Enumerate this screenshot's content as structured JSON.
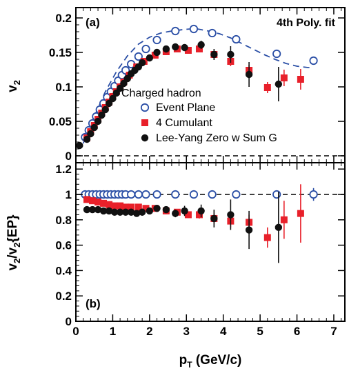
{
  "chart_data": [
    {
      "type": "scatter",
      "panel_label": "(a)",
      "ylabel": "v",
      "ylabel_sub": "2",
      "xlim": [
        0,
        7.3
      ],
      "ylim": [
        -0.01,
        0.215
      ],
      "yticks": [
        "0",
        "0.05",
        "0.1",
        "0.15",
        "0.2"
      ],
      "ytick_values": [
        0,
        0.05,
        0.1,
        0.15,
        0.2
      ],
      "legend_title": "Charged hadron",
      "fit_label": "4th Poly. fit",
      "reference_line": 0,
      "fit_curve": {
        "x": [
          0.2,
          0.5,
          0.8,
          1.1,
          1.4,
          1.7,
          2.0,
          2.3,
          2.6,
          2.9,
          3.1,
          3.3,
          3.6,
          3.9,
          4.2,
          4.5,
          4.8,
          5.1,
          5.4,
          5.7,
          6.0,
          6.3,
          6.45
        ],
        "y": [
          0.018,
          0.057,
          0.093,
          0.122,
          0.145,
          0.162,
          0.172,
          0.178,
          0.181,
          0.183,
          0.184,
          0.184,
          0.181,
          0.177,
          0.171,
          0.163,
          0.155,
          0.147,
          0.14,
          0.134,
          0.13,
          0.128,
          0.128
        ]
      },
      "series": [
        {
          "name": "Event Plane",
          "marker": "open-circle",
          "color": "#2b4fa6",
          "x": [
            0.25,
            0.35,
            0.45,
            0.55,
            0.65,
            0.75,
            0.85,
            0.95,
            1.05,
            1.15,
            1.25,
            1.35,
            1.5,
            1.7,
            1.9,
            2.2,
            2.7,
            3.2,
            3.7,
            4.35,
            5.45,
            6.45
          ],
          "y": [
            0.027,
            0.037,
            0.047,
            0.057,
            0.067,
            0.076,
            0.085,
            0.093,
            0.101,
            0.109,
            0.117,
            0.124,
            0.133,
            0.144,
            0.155,
            0.168,
            0.181,
            0.184,
            0.178,
            0.169,
            0.148,
            0.138
          ],
          "yerr": [
            0.001,
            0.001,
            0.001,
            0.001,
            0.001,
            0.001,
            0.001,
            0.001,
            0.001,
            0.001,
            0.001,
            0.001,
            0.001,
            0.001,
            0.001,
            0.001,
            0.001,
            0.001,
            0.002,
            0.002,
            0.003,
            0.005
          ]
        },
        {
          "name": "4 Cumulant",
          "marker": "filled-square",
          "color": "#e8202a",
          "x": [
            0.3,
            0.4,
            0.5,
            0.6,
            0.7,
            0.8,
            0.9,
            1.0,
            1.1,
            1.2,
            1.3,
            1.45,
            1.65,
            1.85,
            2.15,
            2.45,
            2.75,
            3.05,
            3.35,
            3.75,
            4.2,
            4.7,
            5.2,
            5.65,
            6.1
          ],
          "y": [
            0.026,
            0.035,
            0.044,
            0.053,
            0.062,
            0.07,
            0.078,
            0.086,
            0.093,
            0.1,
            0.107,
            0.117,
            0.129,
            0.137,
            0.146,
            0.151,
            0.155,
            0.153,
            0.155,
            0.147,
            0.137,
            0.124,
            0.099,
            0.113,
            0.111
          ],
          "yerr": [
            0.001,
            0.001,
            0.001,
            0.001,
            0.001,
            0.001,
            0.001,
            0.001,
            0.001,
            0.001,
            0.001,
            0.001,
            0.001,
            0.001,
            0.002,
            0.002,
            0.002,
            0.003,
            0.004,
            0.005,
            0.007,
            0.008,
            0.008,
            0.012,
            0.015
          ]
        },
        {
          "name": "Lee-Yang Zero w Sum G",
          "marker": "filled-circle",
          "color": "#111111",
          "x": [
            0.1,
            0.3,
            0.4,
            0.5,
            0.6,
            0.7,
            0.8,
            0.9,
            1.0,
            1.1,
            1.2,
            1.3,
            1.4,
            1.5,
            1.6,
            1.7,
            1.8,
            2.0,
            2.2,
            2.45,
            2.7,
            2.95,
            3.4,
            3.75,
            4.2,
            4.7,
            5.5
          ],
          "y": [
            0.015,
            0.024,
            0.032,
            0.041,
            0.05,
            0.059,
            0.067,
            0.076,
            0.083,
            0.091,
            0.098,
            0.105,
            0.112,
            0.119,
            0.124,
            0.129,
            0.135,
            0.142,
            0.15,
            0.155,
            0.158,
            0.157,
            0.161,
            0.147,
            0.147,
            0.118,
            0.104
          ],
          "yerr": [
            0.001,
            0.001,
            0.001,
            0.001,
            0.001,
            0.001,
            0.001,
            0.001,
            0.001,
            0.001,
            0.001,
            0.001,
            0.001,
            0.001,
            0.001,
            0.001,
            0.002,
            0.002,
            0.002,
            0.003,
            0.004,
            0.005,
            0.006,
            0.008,
            0.012,
            0.018,
            0.025
          ]
        }
      ]
    },
    {
      "type": "scatter",
      "panel_label": "(b)",
      "ylabel": "v",
      "ylabel_sub": "2",
      "ylabel_tail": "/v",
      "ylabel_sub2": "2",
      "ylabel_end": "{EP}",
      "xlabel": "p",
      "xlabel_sub": "T",
      "xlabel_tail": " (GeV/c)",
      "xlim": [
        0,
        7.3
      ],
      "ylim": [
        0,
        1.25
      ],
      "xticks": [
        "0",
        "1",
        "2",
        "3",
        "4",
        "5",
        "6",
        "7"
      ],
      "xtick_values": [
        0,
        1,
        2,
        3,
        4,
        5,
        6,
        7
      ],
      "yticks": [
        "0",
        "0.2",
        "0.4",
        "0.6",
        "0.8",
        "1",
        "1.2"
      ],
      "ytick_values": [
        0,
        0.2,
        0.4,
        0.6,
        0.8,
        1.0,
        1.2
      ],
      "reference_line": 1,
      "series": [
        {
          "name": "Event Plane",
          "marker": "open-circle",
          "color": "#2b4fa6",
          "x": [
            0.25,
            0.35,
            0.45,
            0.55,
            0.65,
            0.75,
            0.85,
            0.95,
            1.05,
            1.15,
            1.25,
            1.35,
            1.5,
            1.7,
            1.9,
            2.2,
            2.7,
            3.2,
            3.7,
            4.35,
            5.45,
            6.45
          ],
          "y": [
            1,
            1,
            1,
            1,
            1,
            1,
            1,
            1,
            1,
            1,
            1,
            1,
            1,
            1,
            1,
            1,
            1,
            1,
            1,
            1,
            1,
            1
          ],
          "yerr": [
            0,
            0,
            0,
            0,
            0,
            0,
            0,
            0,
            0,
            0,
            0,
            0,
            0,
            0,
            0,
            0,
            0,
            0,
            0,
            0.01,
            0.02,
            0.05
          ]
        },
        {
          "name": "4 Cumulant",
          "marker": "filled-square",
          "color": "#e8202a",
          "x": [
            0.3,
            0.45,
            0.6,
            0.75,
            0.9,
            1.05,
            1.2,
            1.35,
            1.5,
            1.7,
            1.9,
            2.15,
            2.45,
            2.75,
            3.05,
            3.35,
            3.75,
            4.2,
            4.7,
            5.2,
            5.65,
            6.1
          ],
          "y": [
            0.96,
            0.95,
            0.94,
            0.93,
            0.92,
            0.91,
            0.91,
            0.9,
            0.9,
            0.9,
            0.89,
            0.89,
            0.87,
            0.86,
            0.84,
            0.84,
            0.81,
            0.79,
            0.78,
            0.66,
            0.8,
            0.85
          ],
          "yerr": [
            0.01,
            0.01,
            0.01,
            0.01,
            0.01,
            0.01,
            0.01,
            0.01,
            0.01,
            0.01,
            0.01,
            0.01,
            0.01,
            0.02,
            0.02,
            0.03,
            0.04,
            0.05,
            0.06,
            0.08,
            0.15,
            0.23
          ]
        },
        {
          "name": "Lee-Yang Zero w Sum G",
          "marker": "filled-circle",
          "color": "#111111",
          "x": [
            0.3,
            0.45,
            0.6,
            0.75,
            0.9,
            1.05,
            1.2,
            1.35,
            1.5,
            1.65,
            1.8,
            2.0,
            2.2,
            2.45,
            2.7,
            2.95,
            3.4,
            3.75,
            4.2,
            4.7,
            5.5
          ],
          "y": [
            0.88,
            0.88,
            0.88,
            0.87,
            0.87,
            0.86,
            0.86,
            0.86,
            0.86,
            0.85,
            0.86,
            0.87,
            0.89,
            0.88,
            0.85,
            0.87,
            0.87,
            0.81,
            0.84,
            0.72,
            0.74
          ],
          "yerr": [
            0.01,
            0.01,
            0.01,
            0.01,
            0.01,
            0.01,
            0.01,
            0.01,
            0.01,
            0.01,
            0.01,
            0.01,
            0.02,
            0.02,
            0.03,
            0.04,
            0.05,
            0.07,
            0.12,
            0.15,
            0.28
          ]
        }
      ]
    }
  ]
}
